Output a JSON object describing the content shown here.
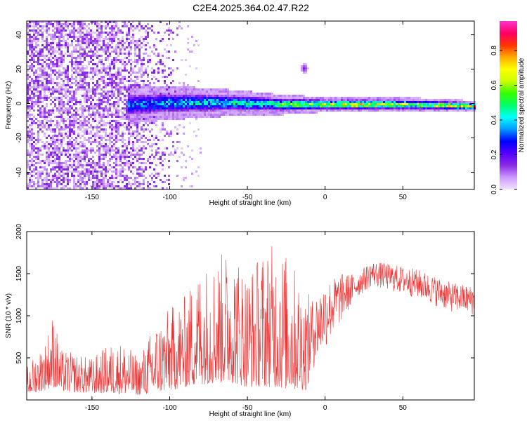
{
  "title": "C2E4.2025.364.02.47.R22",
  "charts": [
    {
      "type": "heatmap",
      "xlabel": "Height of straight line (km)",
      "ylabel": "Frequency (Hz)",
      "xlim": [
        -192,
        96
      ],
      "ylim": [
        -50,
        48
      ],
      "xticks": [
        -150,
        -100,
        -50,
        0,
        50
      ],
      "yticks": [
        -40,
        -20,
        0,
        20,
        40
      ],
      "colorbar": {
        "label": "Normalized spectral amplitude",
        "range": [
          0,
          0.97
        ],
        "ticks": [
          0.0,
          0.2,
          0.4,
          0.6,
          0.8
        ],
        "colormap": [
          "#f2e4ff",
          "#cc99ff",
          "#8a2be2",
          "#5500ff",
          "#0000ff",
          "#0099ff",
          "#00ffff",
          "#00ff66",
          "#33ff00",
          "#ccff00",
          "#ffff00",
          "#ffaa00",
          "#ff3300",
          "#ff0066",
          "#ff33cc"
        ]
      },
      "band": {
        "center_freq": [
          [
            -125,
            0
          ],
          [
            -100,
            1
          ],
          [
            -60,
            1
          ],
          [
            -30,
            0
          ],
          [
            0,
            0
          ],
          [
            50,
            0
          ],
          [
            96,
            -1
          ]
        ],
        "half_width": [
          [
            -125,
            5
          ],
          [
            -80,
            4
          ],
          [
            -40,
            3
          ],
          [
            0,
            2
          ],
          [
            50,
            2
          ],
          [
            96,
            1.5
          ]
        ],
        "peak_amplitude": [
          [
            -125,
            0.4
          ],
          [
            -80,
            0.5
          ],
          [
            -40,
            0.55
          ],
          [
            -10,
            0.75
          ],
          [
            20,
            0.85
          ],
          [
            60,
            0.7
          ],
          [
            96,
            0.9
          ]
        ]
      },
      "noise_region": [
        -192,
        -95
      ],
      "blob": {
        "x": -14,
        "freq": 21,
        "amplitude": 0.15
      }
    },
    {
      "type": "line",
      "xlabel": "Height of straight line (km)",
      "ylabel": "SNR (10 * v/v)",
      "xlim": [
        -192,
        96
      ],
      "ylim": [
        0,
        2000
      ],
      "xticks": [
        -150,
        -100,
        -50,
        0,
        50
      ],
      "yticks": [
        500,
        1000,
        1500,
        2000
      ],
      "color": "#ee3333",
      "envelope": {
        "x": [
          -192,
          -180,
          -175,
          -170,
          -150,
          -140,
          -130,
          -120,
          -110,
          -100,
          -90,
          -80,
          -70,
          -60,
          -50,
          -40,
          -30,
          -20,
          -12,
          -8,
          0,
          10,
          20,
          30,
          40,
          60,
          80,
          96
        ],
        "low": [
          60,
          120,
          150,
          100,
          80,
          80,
          70,
          60,
          80,
          110,
          150,
          180,
          200,
          200,
          150,
          160,
          140,
          120,
          120,
          350,
          600,
          900,
          1200,
          1350,
          1300,
          1200,
          1050,
          1000
        ],
        "high": [
          400,
          700,
          1050,
          600,
          500,
          650,
          700,
          500,
          900,
          1100,
          1250,
          1600,
          1700,
          1850,
          1550,
          1800,
          1900,
          1600,
          1300,
          1200,
          1400,
          1500,
          1500,
          1650,
          1620,
          1550,
          1400,
          1350
        ]
      }
    }
  ]
}
